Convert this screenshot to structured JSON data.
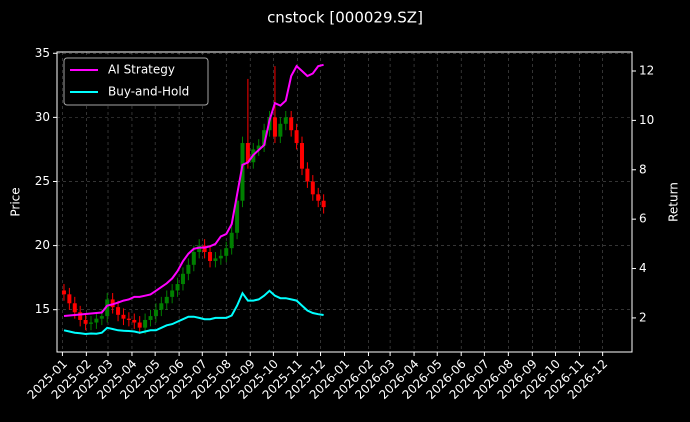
{
  "chart_data": {
    "type": "candlestick",
    "title": "cnstock [000029.SZ]",
    "ylabel": "Price",
    "y2label": "Return",
    "x_start": "2025-01-03",
    "x_step_days": 7,
    "open": [
      16.5,
      16.2,
      15.5,
      14.8,
      14.2,
      13.9,
      14.0,
      14.3,
      14.5,
      15.8,
      15.2,
      14.6,
      14.3,
      14.2,
      14.0,
      13.6,
      14.2,
      14.5,
      15.0,
      15.5,
      16.0,
      16.5,
      17.0,
      17.8,
      18.5,
      19.5,
      20.0,
      19.5,
      18.8,
      19.0,
      19.2,
      19.8,
      21.0,
      23.5,
      28.0,
      26.5,
      27.5,
      27.8,
      29.0,
      30.0,
      28.5,
      29.5,
      30.0,
      29.0,
      28.0,
      26.0,
      25.0,
      24.0,
      23.5
    ],
    "high": [
      17.0,
      16.7,
      16.0,
      15.3,
      14.7,
      14.5,
      14.8,
      15.0,
      16.3,
      16.3,
      15.7,
      15.1,
      14.8,
      14.7,
      14.5,
      14.7,
      15.0,
      15.5,
      16.0,
      16.5,
      17.0,
      17.5,
      18.3,
      19.0,
      20.0,
      20.5,
      20.5,
      20.0,
      19.5,
      19.7,
      20.3,
      21.5,
      24.0,
      28.5,
      33.0,
      28.0,
      28.3,
      29.5,
      30.5,
      34.0,
      30.0,
      30.5,
      30.5,
      29.5,
      28.5,
      26.5,
      25.5,
      24.5,
      24.0
    ],
    "low": [
      15.7,
      15.0,
      14.3,
      13.7,
      13.4,
      13.4,
      13.5,
      13.8,
      14.0,
      14.7,
      14.1,
      13.8,
      13.7,
      13.5,
      13.1,
      13.1,
      13.7,
      14.0,
      14.5,
      15.0,
      15.5,
      16.0,
      16.5,
      17.3,
      18.0,
      19.0,
      19.0,
      18.3,
      18.3,
      18.5,
      18.7,
      19.3,
      20.5,
      23.0,
      26.0,
      26.0,
      27.0,
      27.3,
      28.5,
      28.0,
      28.0,
      29.0,
      28.5,
      27.5,
      25.5,
      24.5,
      23.5,
      23.0,
      22.5
    ],
    "close": [
      16.2,
      15.5,
      14.8,
      14.2,
      13.9,
      14.0,
      14.3,
      14.5,
      15.8,
      15.2,
      14.6,
      14.3,
      14.2,
      14.0,
      13.6,
      14.2,
      14.5,
      15.0,
      15.5,
      16.0,
      16.5,
      17.0,
      17.8,
      18.5,
      19.5,
      20.0,
      19.5,
      18.8,
      19.0,
      19.2,
      19.8,
      21.0,
      23.5,
      28.0,
      26.5,
      27.5,
      27.8,
      29.0,
      30.0,
      28.5,
      29.5,
      30.0,
      29.0,
      28.0,
      26.0,
      25.0,
      24.0,
      23.5,
      23.0
    ],
    "up_color": "#008000",
    "down_color": "#ff0000",
    "series": [
      {
        "name": "AI Strategy",
        "color": "#ff00ff",
        "axis": "y2",
        "values": [
          2.08,
          2.1,
          2.12,
          2.14,
          2.16,
          2.18,
          2.2,
          2.22,
          2.5,
          2.55,
          2.62,
          2.7,
          2.75,
          2.85,
          2.85,
          2.9,
          2.95,
          3.1,
          3.25,
          3.4,
          3.6,
          3.9,
          4.3,
          4.6,
          4.8,
          4.85,
          4.85,
          4.9,
          5.0,
          5.3,
          5.4,
          5.8,
          7.0,
          8.2,
          8.3,
          8.6,
          8.8,
          9.0,
          10.0,
          10.7,
          10.6,
          10.8,
          11.8,
          12.2,
          12.0,
          11.8,
          11.9,
          12.2,
          12.25
        ]
      },
      {
        "name": "Buy-and-Hold",
        "color": "#00ffff",
        "axis": "y2",
        "values": [
          1.5,
          1.45,
          1.4,
          1.38,
          1.35,
          1.37,
          1.36,
          1.4,
          1.6,
          1.55,
          1.5,
          1.48,
          1.47,
          1.45,
          1.4,
          1.45,
          1.5,
          1.5,
          1.6,
          1.7,
          1.75,
          1.85,
          1.95,
          2.05,
          2.05,
          2.0,
          1.95,
          1.95,
          2.0,
          2.0,
          2.0,
          2.1,
          2.5,
          3.0,
          2.7,
          2.7,
          2.75,
          2.9,
          3.1,
          2.9,
          2.8,
          2.8,
          2.75,
          2.7,
          2.5,
          2.3,
          2.2,
          2.15,
          2.12
        ]
      }
    ],
    "xlim": [
      "2024-12-25",
      "2027-01-08"
    ],
    "xticks": [
      "2025-01",
      "2025-02",
      "2025-03",
      "2025-04",
      "2025-05",
      "2025-06",
      "2025-07",
      "2025-08",
      "2025-09",
      "2025-10",
      "2025-11",
      "2025-12",
      "2026-01",
      "2026-02",
      "2026-03",
      "2026-04",
      "2026-05",
      "2026-06",
      "2026-07",
      "2026-08",
      "2026-09",
      "2026-10",
      "2026-11",
      "2026-12"
    ],
    "ylim": [
      11.7,
      35.1
    ],
    "yticks": [
      15,
      20,
      25,
      30,
      35
    ],
    "y2lim": [
      0.62,
      12.77
    ],
    "y2ticks": [
      2,
      4,
      6,
      8,
      10,
      12
    ],
    "grid": true,
    "legend": "upper left"
  }
}
